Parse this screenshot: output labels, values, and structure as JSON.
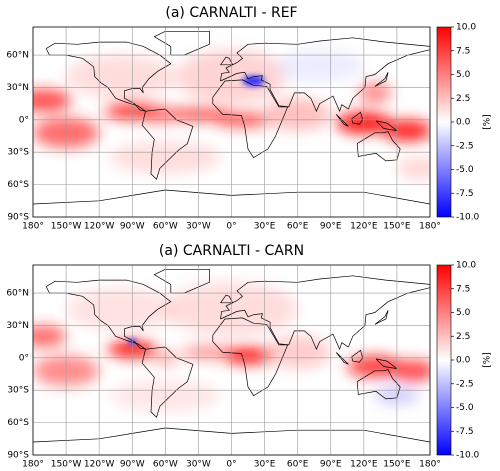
{
  "chart_data": [
    {
      "type": "heatmap",
      "title": "(a) CARNALTI - REF",
      "xlim": [
        -180,
        180
      ],
      "ylim": [
        -90,
        86
      ],
      "xticks": [
        {
          "value": -180,
          "label": "180°"
        },
        {
          "value": -150,
          "label": "150°W"
        },
        {
          "value": -120,
          "label": "120°W"
        },
        {
          "value": -90,
          "label": "90°W"
        },
        {
          "value": -60,
          "label": "60°W"
        },
        {
          "value": -30,
          "label": "30°W"
        },
        {
          "value": 0,
          "label": "0°"
        },
        {
          "value": 30,
          "label": "30°E"
        },
        {
          "value": 60,
          "label": "60°E"
        },
        {
          "value": 90,
          "label": "90°E"
        },
        {
          "value": 120,
          "label": "120°E"
        },
        {
          "value": 150,
          "label": "150°E"
        },
        {
          "value": 180,
          "label": "180°"
        }
      ],
      "yticks": [
        {
          "value": 60,
          "label": "60°N"
        },
        {
          "value": 30,
          "label": "30°N"
        },
        {
          "value": 0,
          "label": "0°"
        },
        {
          "value": -30,
          "label": "30°S"
        },
        {
          "value": -60,
          "label": "60°S"
        },
        {
          "value": -90,
          "label": "90°S"
        }
      ],
      "grid": true,
      "colorbar": {
        "label": "[%]",
        "lim": [
          -10,
          10
        ],
        "colormap": [
          "#0000ff",
          "#ffffff",
          "#ff0000"
        ],
        "ticks": [
          {
            "value": 10,
            "label": "10.0"
          },
          {
            "value": 7.5,
            "label": "7.5"
          },
          {
            "value": 5,
            "label": "5.0"
          },
          {
            "value": 2.5,
            "label": "2.5"
          },
          {
            "value": 0,
            "label": "0.0"
          },
          {
            "value": -2.5,
            "label": "-2.5"
          },
          {
            "value": -5,
            "label": "-5.0"
          },
          {
            "value": -7.5,
            "label": "-7.5"
          },
          {
            "value": -10,
            "label": "-10.0"
          }
        ]
      }
    },
    {
      "type": "heatmap",
      "title": "(a) CARNALTI - CARN",
      "xlim": [
        -180,
        180
      ],
      "ylim": [
        -90,
        86
      ],
      "xticks": [
        {
          "value": -180,
          "label": "180°"
        },
        {
          "value": -150,
          "label": "150°W"
        },
        {
          "value": -120,
          "label": "120°W"
        },
        {
          "value": -90,
          "label": "90°W"
        },
        {
          "value": -60,
          "label": "60°W"
        },
        {
          "value": -30,
          "label": "30°W"
        },
        {
          "value": 0,
          "label": "0°"
        },
        {
          "value": 30,
          "label": "30°E"
        },
        {
          "value": 60,
          "label": "60°E"
        },
        {
          "value": 90,
          "label": "90°E"
        },
        {
          "value": 120,
          "label": "120°E"
        },
        {
          "value": 150,
          "label": "150°E"
        },
        {
          "value": 180,
          "label": "180°"
        }
      ],
      "yticks": [
        {
          "value": 60,
          "label": "60°N"
        },
        {
          "value": 30,
          "label": "30°N"
        },
        {
          "value": 0,
          "label": "0°"
        },
        {
          "value": -30,
          "label": "30°S"
        },
        {
          "value": -60,
          "label": "60°S"
        },
        {
          "value": -90,
          "label": "90°S"
        }
      ],
      "grid": true,
      "colorbar": {
        "label": "[%]",
        "lim": [
          -10,
          10
        ],
        "colormap": [
          "#0000ff",
          "#ffffff",
          "#ff0000"
        ],
        "ticks": [
          {
            "value": 10,
            "label": "10.0"
          },
          {
            "value": 7.5,
            "label": "7.5"
          },
          {
            "value": 5,
            "label": "5.0"
          },
          {
            "value": 2.5,
            "label": "2.5"
          },
          {
            "value": 0,
            "label": "0.0"
          },
          {
            "value": -2.5,
            "label": "-2.5"
          },
          {
            "value": -5,
            "label": "-5.0"
          },
          {
            "value": -7.5,
            "label": "-7.5"
          },
          {
            "value": -10,
            "label": "-10.0"
          }
        ]
      }
    }
  ]
}
